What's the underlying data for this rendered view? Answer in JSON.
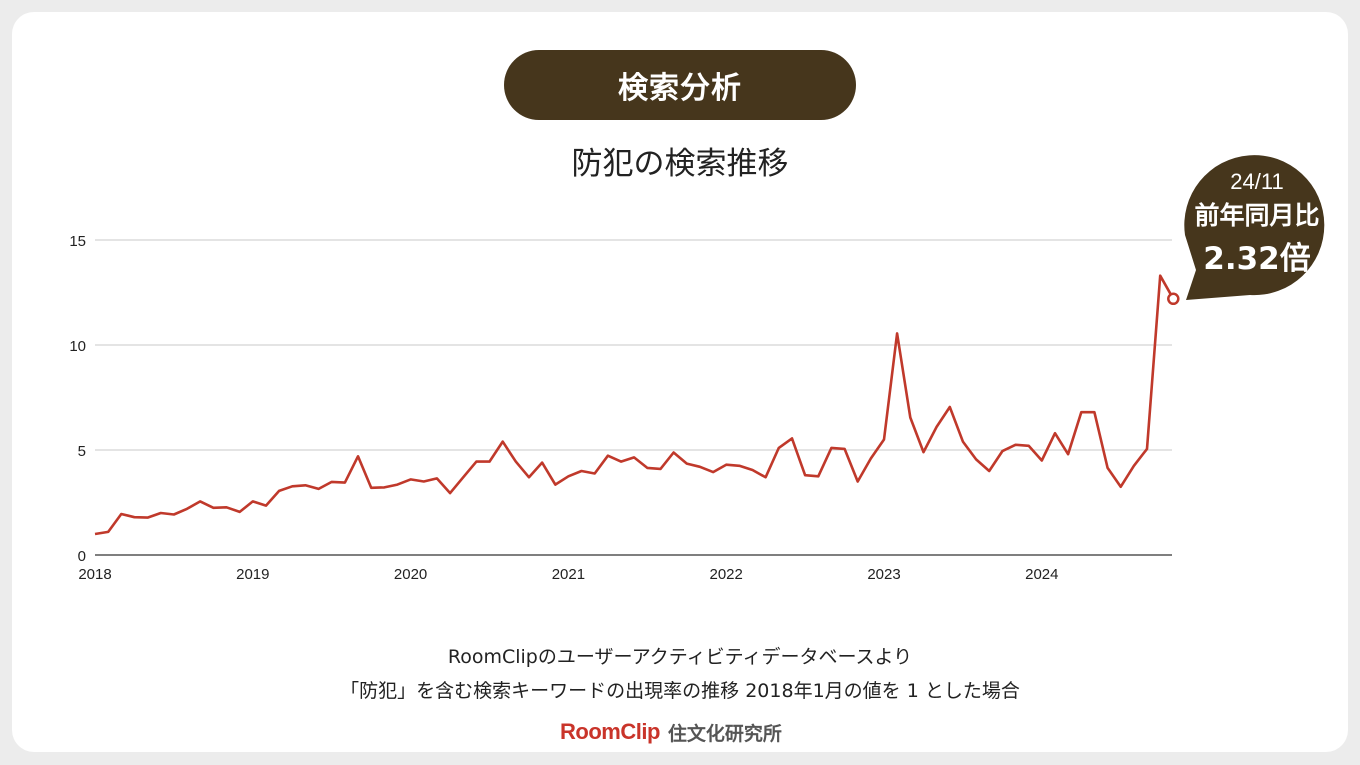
{
  "header": {
    "badge": "検索分析"
  },
  "brand": {
    "logo": "RoomClip",
    "subtitle": "住文化研究所",
    "accent_color": "#c9342a"
  },
  "callout": {
    "period": "24/11",
    "label": "前年同月比",
    "value": "2.32倍",
    "bg_color": "#46361c"
  },
  "caption": {
    "line1": "RoomClipのユーザーアクティビティデータベースより",
    "line2": "「防犯」を含む検索キーワードの出現率の推移 2018年1月の値を 1 とした場合"
  },
  "chart_data": {
    "type": "line",
    "title": "防犯の検索推移",
    "xlabel": "",
    "ylabel": "",
    "ylim": [
      0,
      15
    ],
    "y_ticks": [
      "0",
      "5",
      "10",
      "15"
    ],
    "x_ticks": [
      "2018",
      "2019",
      "2020",
      "2021",
      "2022",
      "2023",
      "2024"
    ],
    "grid": true,
    "legend": "none",
    "line_color": "#c0392b",
    "series": [
      {
        "start": "2018-01",
        "end": "2024-11",
        "values": [
          1.0,
          1.1,
          1.95,
          1.8,
          1.78,
          2.0,
          1.93,
          2.2,
          2.55,
          2.25,
          2.27,
          2.05,
          2.55,
          2.35,
          3.05,
          3.27,
          3.32,
          3.15,
          3.48,
          3.45,
          4.7,
          3.2,
          3.22,
          3.35,
          3.6,
          3.5,
          3.65,
          2.95,
          3.7,
          4.45,
          4.45,
          5.4,
          4.45,
          3.7,
          4.4,
          3.35,
          3.75,
          4.0,
          3.88,
          4.73,
          4.45,
          4.65,
          4.15,
          4.1,
          4.88,
          4.35,
          4.2,
          3.95,
          4.3,
          4.25,
          4.05,
          3.7,
          5.1,
          5.55,
          3.8,
          3.75,
          5.1,
          5.05,
          3.5,
          4.6,
          5.5,
          10.55,
          6.55,
          4.9,
          6.1,
          7.05,
          5.4,
          4.55,
          4.0,
          4.95,
          5.25,
          5.2,
          4.5,
          5.8,
          4.8,
          6.8,
          6.8,
          4.15,
          3.25,
          4.25,
          5.05,
          13.3,
          12.2
        ]
      }
    ]
  }
}
